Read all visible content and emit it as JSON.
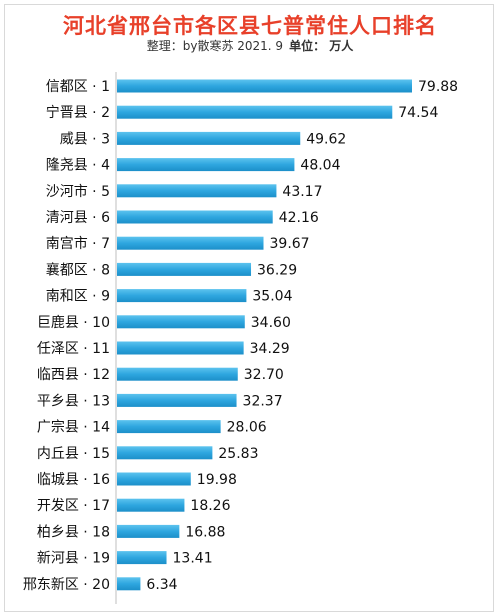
{
  "chart_data": {
    "type": "bar",
    "orientation": "horizontal",
    "title": "河北省邢台市各区县七普常住人口排名",
    "subtitle": "整理：by散寒苏  2021. 9",
    "unit": "单位： 万人",
    "categories": [
      "信都区 · 1",
      "宁晋县 · 2",
      "威县 · 3",
      "隆尧县 · 4",
      "沙河市 · 5",
      "清河县 · 6",
      "南宫市 · 7",
      "襄都区 · 8",
      "南和区 · 9",
      "巨鹿县 · 10",
      "任泽区 · 11",
      "临西县 · 12",
      "平乡县 · 13",
      "广宗县 · 14",
      "内丘县 · 15",
      "临城县 · 16",
      "开发区 · 17",
      "柏乡县 · 18",
      "新河县 · 19",
      "邢东新区 · 20"
    ],
    "values": [
      79.88,
      74.54,
      49.62,
      48.04,
      43.17,
      42.16,
      39.67,
      36.29,
      35.04,
      34.6,
      34.29,
      32.7,
      32.37,
      28.06,
      25.83,
      19.98,
      18.26,
      16.88,
      13.41,
      6.34
    ],
    "value_labels": [
      "79.88",
      "74.54",
      "49.62",
      "48.04",
      "43.17",
      "42.16",
      "39.67",
      "36.29",
      "35.04",
      "34.60",
      "34.29",
      "32.70",
      "32.37",
      "28.06",
      "25.83",
      "19.98",
      "18.26",
      "16.88",
      "13.41",
      "6.34"
    ],
    "bar_color": "#2ea6df",
    "title_color": "#e8402a"
  }
}
